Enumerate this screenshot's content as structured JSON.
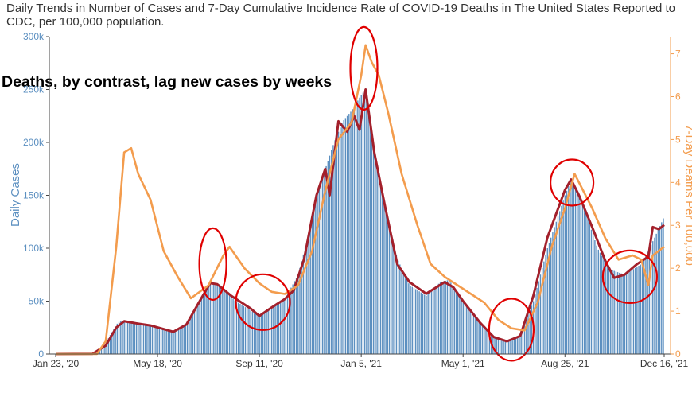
{
  "chart_data": {
    "type": "bar",
    "title": "Daily Trends in Number of Cases and 7-Day Cumulative Incidence Rate of COVID-19 Deaths in The United States Reported to CDC, per 100,000 population.",
    "annotation": "Deaths, by contrast, lag new cases by weeks",
    "ylabel_left": "Daily Cases",
    "ylabel_right": "7-Day Deaths Per 100,000",
    "x_start": "2020-01-23",
    "x_end": "2021-12-16",
    "x_ticks": [
      {
        "label": "Jan 23, '20",
        "date": "2020-01-23"
      },
      {
        "label": "May 18, '20",
        "date": "2020-05-18"
      },
      {
        "label": "Sep 11, '20",
        "date": "2020-09-11"
      },
      {
        "label": "Jan 5, '21",
        "date": "2021-01-05"
      },
      {
        "label": "May 1, '21",
        "date": "2021-05-01"
      },
      {
        "label": "Aug 25, '21",
        "date": "2021-08-25"
      },
      {
        "label": "Dec 16, '21",
        "date": "2021-12-16"
      }
    ],
    "y_left": {
      "ylim": [
        0,
        300000
      ],
      "ticks": [
        0,
        50000,
        100000,
        150000,
        200000,
        250000,
        300000
      ],
      "tick_labels": [
        "0",
        "50k",
        "100k",
        "150k",
        "200k",
        "250k",
        "300k"
      ]
    },
    "y_right": {
      "ylim": [
        0,
        7.4
      ],
      "ticks": [
        0,
        1,
        2,
        3,
        4,
        5,
        6,
        7
      ],
      "tick_labels": [
        "0",
        "1",
        "2",
        "3",
        "4",
        "5",
        "6",
        "7"
      ]
    },
    "grid": false,
    "series": [
      {
        "kind": "bar",
        "axis": "left",
        "color": "#5b8fc0",
        "points": [
          [
            "2020-01-23",
            0
          ],
          [
            "2020-03-01",
            100
          ],
          [
            "2020-03-10",
            1000
          ],
          [
            "2020-03-18",
            7000
          ],
          [
            "2020-03-25",
            18000
          ],
          [
            "2020-04-03",
            30000
          ],
          [
            "2020-04-10",
            32000
          ],
          [
            "2020-04-24",
            30000
          ],
          [
            "2020-05-18",
            25000
          ],
          [
            "2020-06-05",
            21000
          ],
          [
            "2020-06-20",
            29000
          ],
          [
            "2020-07-01",
            45000
          ],
          [
            "2020-07-17",
            68000
          ],
          [
            "2020-07-25",
            66000
          ],
          [
            "2020-08-15",
            50000
          ],
          [
            "2020-09-05",
            39000
          ],
          [
            "2020-09-11",
            36000
          ],
          [
            "2020-09-25",
            43000
          ],
          [
            "2020-10-10",
            52000
          ],
          [
            "2020-10-25",
            75000
          ],
          [
            "2020-11-05",
            110000
          ],
          [
            "2020-11-15",
            150000
          ],
          [
            "2020-11-25",
            175000
          ],
          [
            "2020-12-05",
            200000
          ],
          [
            "2020-12-15",
            220000
          ],
          [
            "2020-12-25",
            230000
          ],
          [
            "2021-01-05",
            245000
          ],
          [
            "2021-01-10",
            250000
          ],
          [
            "2021-01-20",
            190000
          ],
          [
            "2021-02-01",
            140000
          ],
          [
            "2021-02-15",
            90000
          ],
          [
            "2021-03-01",
            65000
          ],
          [
            "2021-03-20",
            55000
          ],
          [
            "2021-04-05",
            68000
          ],
          [
            "2021-04-15",
            70000
          ],
          [
            "2021-05-01",
            50000
          ],
          [
            "2021-05-20",
            30000
          ],
          [
            "2021-06-05",
            15000
          ],
          [
            "2021-06-20",
            12000
          ],
          [
            "2021-07-05",
            18000
          ],
          [
            "2021-07-20",
            50000
          ],
          [
            "2021-08-05",
            100000
          ],
          [
            "2021-08-25",
            150000
          ],
          [
            "2021-09-01",
            165000
          ],
          [
            "2021-09-15",
            140000
          ],
          [
            "2021-10-01",
            100000
          ],
          [
            "2021-10-15",
            80000
          ],
          [
            "2021-11-01",
            75000
          ],
          [
            "2021-11-20",
            85000
          ],
          [
            "2021-12-05",
            110000
          ],
          [
            "2021-12-16",
            130000
          ]
        ]
      },
      {
        "kind": "line",
        "axis": "left",
        "color": "#a3202b",
        "points": [
          [
            "2020-01-23",
            0
          ],
          [
            "2020-03-05",
            200
          ],
          [
            "2020-03-20",
            8000
          ],
          [
            "2020-04-01",
            25000
          ],
          [
            "2020-04-10",
            31000
          ],
          [
            "2020-04-24",
            29000
          ],
          [
            "2020-05-10",
            27000
          ],
          [
            "2020-06-05",
            21000
          ],
          [
            "2020-06-20",
            28000
          ],
          [
            "2020-07-05",
            50000
          ],
          [
            "2020-07-17",
            67000
          ],
          [
            "2020-07-25",
            66000
          ],
          [
            "2020-08-10",
            55000
          ],
          [
            "2020-09-01",
            43000
          ],
          [
            "2020-09-11",
            36000
          ],
          [
            "2020-09-25",
            44000
          ],
          [
            "2020-10-10",
            52000
          ],
          [
            "2020-10-20",
            60000
          ],
          [
            "2020-11-01",
            90000
          ],
          [
            "2020-11-15",
            150000
          ],
          [
            "2020-11-25",
            175000
          ],
          [
            "2020-11-30",
            150000
          ],
          [
            "2020-12-10",
            220000
          ],
          [
            "2020-12-20",
            210000
          ],
          [
            "2020-12-28",
            225000
          ],
          [
            "2021-01-03",
            212000
          ],
          [
            "2021-01-10",
            250000
          ],
          [
            "2021-01-20",
            190000
          ],
          [
            "2021-02-01",
            140000
          ],
          [
            "2021-02-15",
            85000
          ],
          [
            "2021-03-01",
            68000
          ],
          [
            "2021-03-20",
            57000
          ],
          [
            "2021-04-10",
            68000
          ],
          [
            "2021-04-20",
            63000
          ],
          [
            "2021-05-01",
            50000
          ],
          [
            "2021-05-20",
            30000
          ],
          [
            "2021-06-05",
            16000
          ],
          [
            "2021-06-20",
            12000
          ],
          [
            "2021-07-05",
            17000
          ],
          [
            "2021-07-20",
            55000
          ],
          [
            "2021-08-05",
            110000
          ],
          [
            "2021-08-25",
            155000
          ],
          [
            "2021-09-01",
            165000
          ],
          [
            "2021-09-10",
            150000
          ],
          [
            "2021-09-25",
            120000
          ],
          [
            "2021-10-10",
            88000
          ],
          [
            "2021-10-20",
            72000
          ],
          [
            "2021-11-01",
            75000
          ],
          [
            "2021-11-15",
            85000
          ],
          [
            "2021-11-28",
            92000
          ],
          [
            "2021-12-03",
            120000
          ],
          [
            "2021-12-10",
            118000
          ],
          [
            "2021-12-16",
            122000
          ]
        ]
      },
      {
        "kind": "line",
        "axis": "right",
        "color": "#f39c4d",
        "points": [
          [
            "2020-01-23",
            0
          ],
          [
            "2020-03-10",
            0
          ],
          [
            "2020-03-20",
            0.3
          ],
          [
            "2020-04-01",
            2.5
          ],
          [
            "2020-04-10",
            4.7
          ],
          [
            "2020-04-18",
            4.8
          ],
          [
            "2020-04-26",
            4.2
          ],
          [
            "2020-05-10",
            3.6
          ],
          [
            "2020-05-25",
            2.4
          ],
          [
            "2020-06-10",
            1.8
          ],
          [
            "2020-06-25",
            1.3
          ],
          [
            "2020-07-15",
            1.6
          ],
          [
            "2020-08-01",
            2.3
          ],
          [
            "2020-08-08",
            2.5
          ],
          [
            "2020-08-25",
            2.0
          ],
          [
            "2020-09-11",
            1.65
          ],
          [
            "2020-09-25",
            1.45
          ],
          [
            "2020-10-10",
            1.4
          ],
          [
            "2020-10-25",
            1.6
          ],
          [
            "2020-11-10",
            2.4
          ],
          [
            "2020-11-25",
            3.8
          ],
          [
            "2020-12-10",
            5.0
          ],
          [
            "2020-12-25",
            5.4
          ],
          [
            "2021-01-05",
            6.5
          ],
          [
            "2021-01-10",
            7.2
          ],
          [
            "2021-01-17",
            6.8
          ],
          [
            "2021-01-25",
            6.5
          ],
          [
            "2021-02-05",
            5.6
          ],
          [
            "2021-02-20",
            4.2
          ],
          [
            "2021-03-10",
            3.0
          ],
          [
            "2021-03-25",
            2.1
          ],
          [
            "2021-04-10",
            1.8
          ],
          [
            "2021-04-25",
            1.6
          ],
          [
            "2021-05-10",
            1.4
          ],
          [
            "2021-05-25",
            1.2
          ],
          [
            "2021-06-10",
            0.8
          ],
          [
            "2021-06-25",
            0.6
          ],
          [
            "2021-07-10",
            0.55
          ],
          [
            "2021-07-25",
            1.2
          ],
          [
            "2021-08-10",
            2.5
          ],
          [
            "2021-08-25",
            3.4
          ],
          [
            "2021-09-05",
            4.2
          ],
          [
            "2021-09-15",
            3.8
          ],
          [
            "2021-09-25",
            3.4
          ],
          [
            "2021-10-10",
            2.7
          ],
          [
            "2021-10-25",
            2.2
          ],
          [
            "2021-11-10",
            2.3
          ],
          [
            "2021-11-20",
            2.2
          ],
          [
            "2021-11-28",
            1.6
          ],
          [
            "2021-12-03",
            2.3
          ],
          [
            "2021-12-16",
            2.5
          ]
        ]
      }
    ],
    "highlight_circles": [
      {
        "date": "2020-07-20",
        "value_left": 85000
      },
      {
        "date": "2020-09-15",
        "value_left": 49000
      },
      {
        "date": "2021-01-08",
        "value_left": 270000
      },
      {
        "date": "2021-06-25",
        "value_left": 23000
      },
      {
        "date": "2021-09-02",
        "value_left": 162000
      },
      {
        "date": "2021-11-07",
        "value_left": 73000
      }
    ]
  }
}
